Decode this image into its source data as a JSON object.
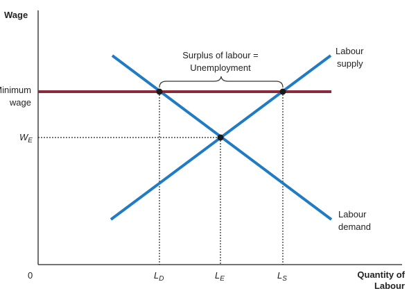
{
  "axes": {
    "y_title": "Wage",
    "x_title_line1": "Quantity of",
    "x_title_line2": "Labour",
    "origin": "0"
  },
  "y_ticks": {
    "min_wage_line1": "Minimum",
    "min_wage_line2": "wage",
    "we_main": "W",
    "we_sub": "E"
  },
  "x_ticks": {
    "ld_main": "L",
    "ld_sub": "D",
    "le_main": "L",
    "le_sub": "E",
    "ls_main": "L",
    "ls_sub": "S"
  },
  "curves": {
    "supply_line1": "Labour",
    "supply_line2": "supply",
    "demand_line1": "Labour",
    "demand_line2": "demand"
  },
  "annotation": {
    "line1": "Surplus of labour =",
    "line2": "Unemployment"
  },
  "colors": {
    "curve": "#1f7bc4",
    "min_wage": "#8b2a3a",
    "axis": "#222222",
    "point": "#1a1a1a"
  }
}
